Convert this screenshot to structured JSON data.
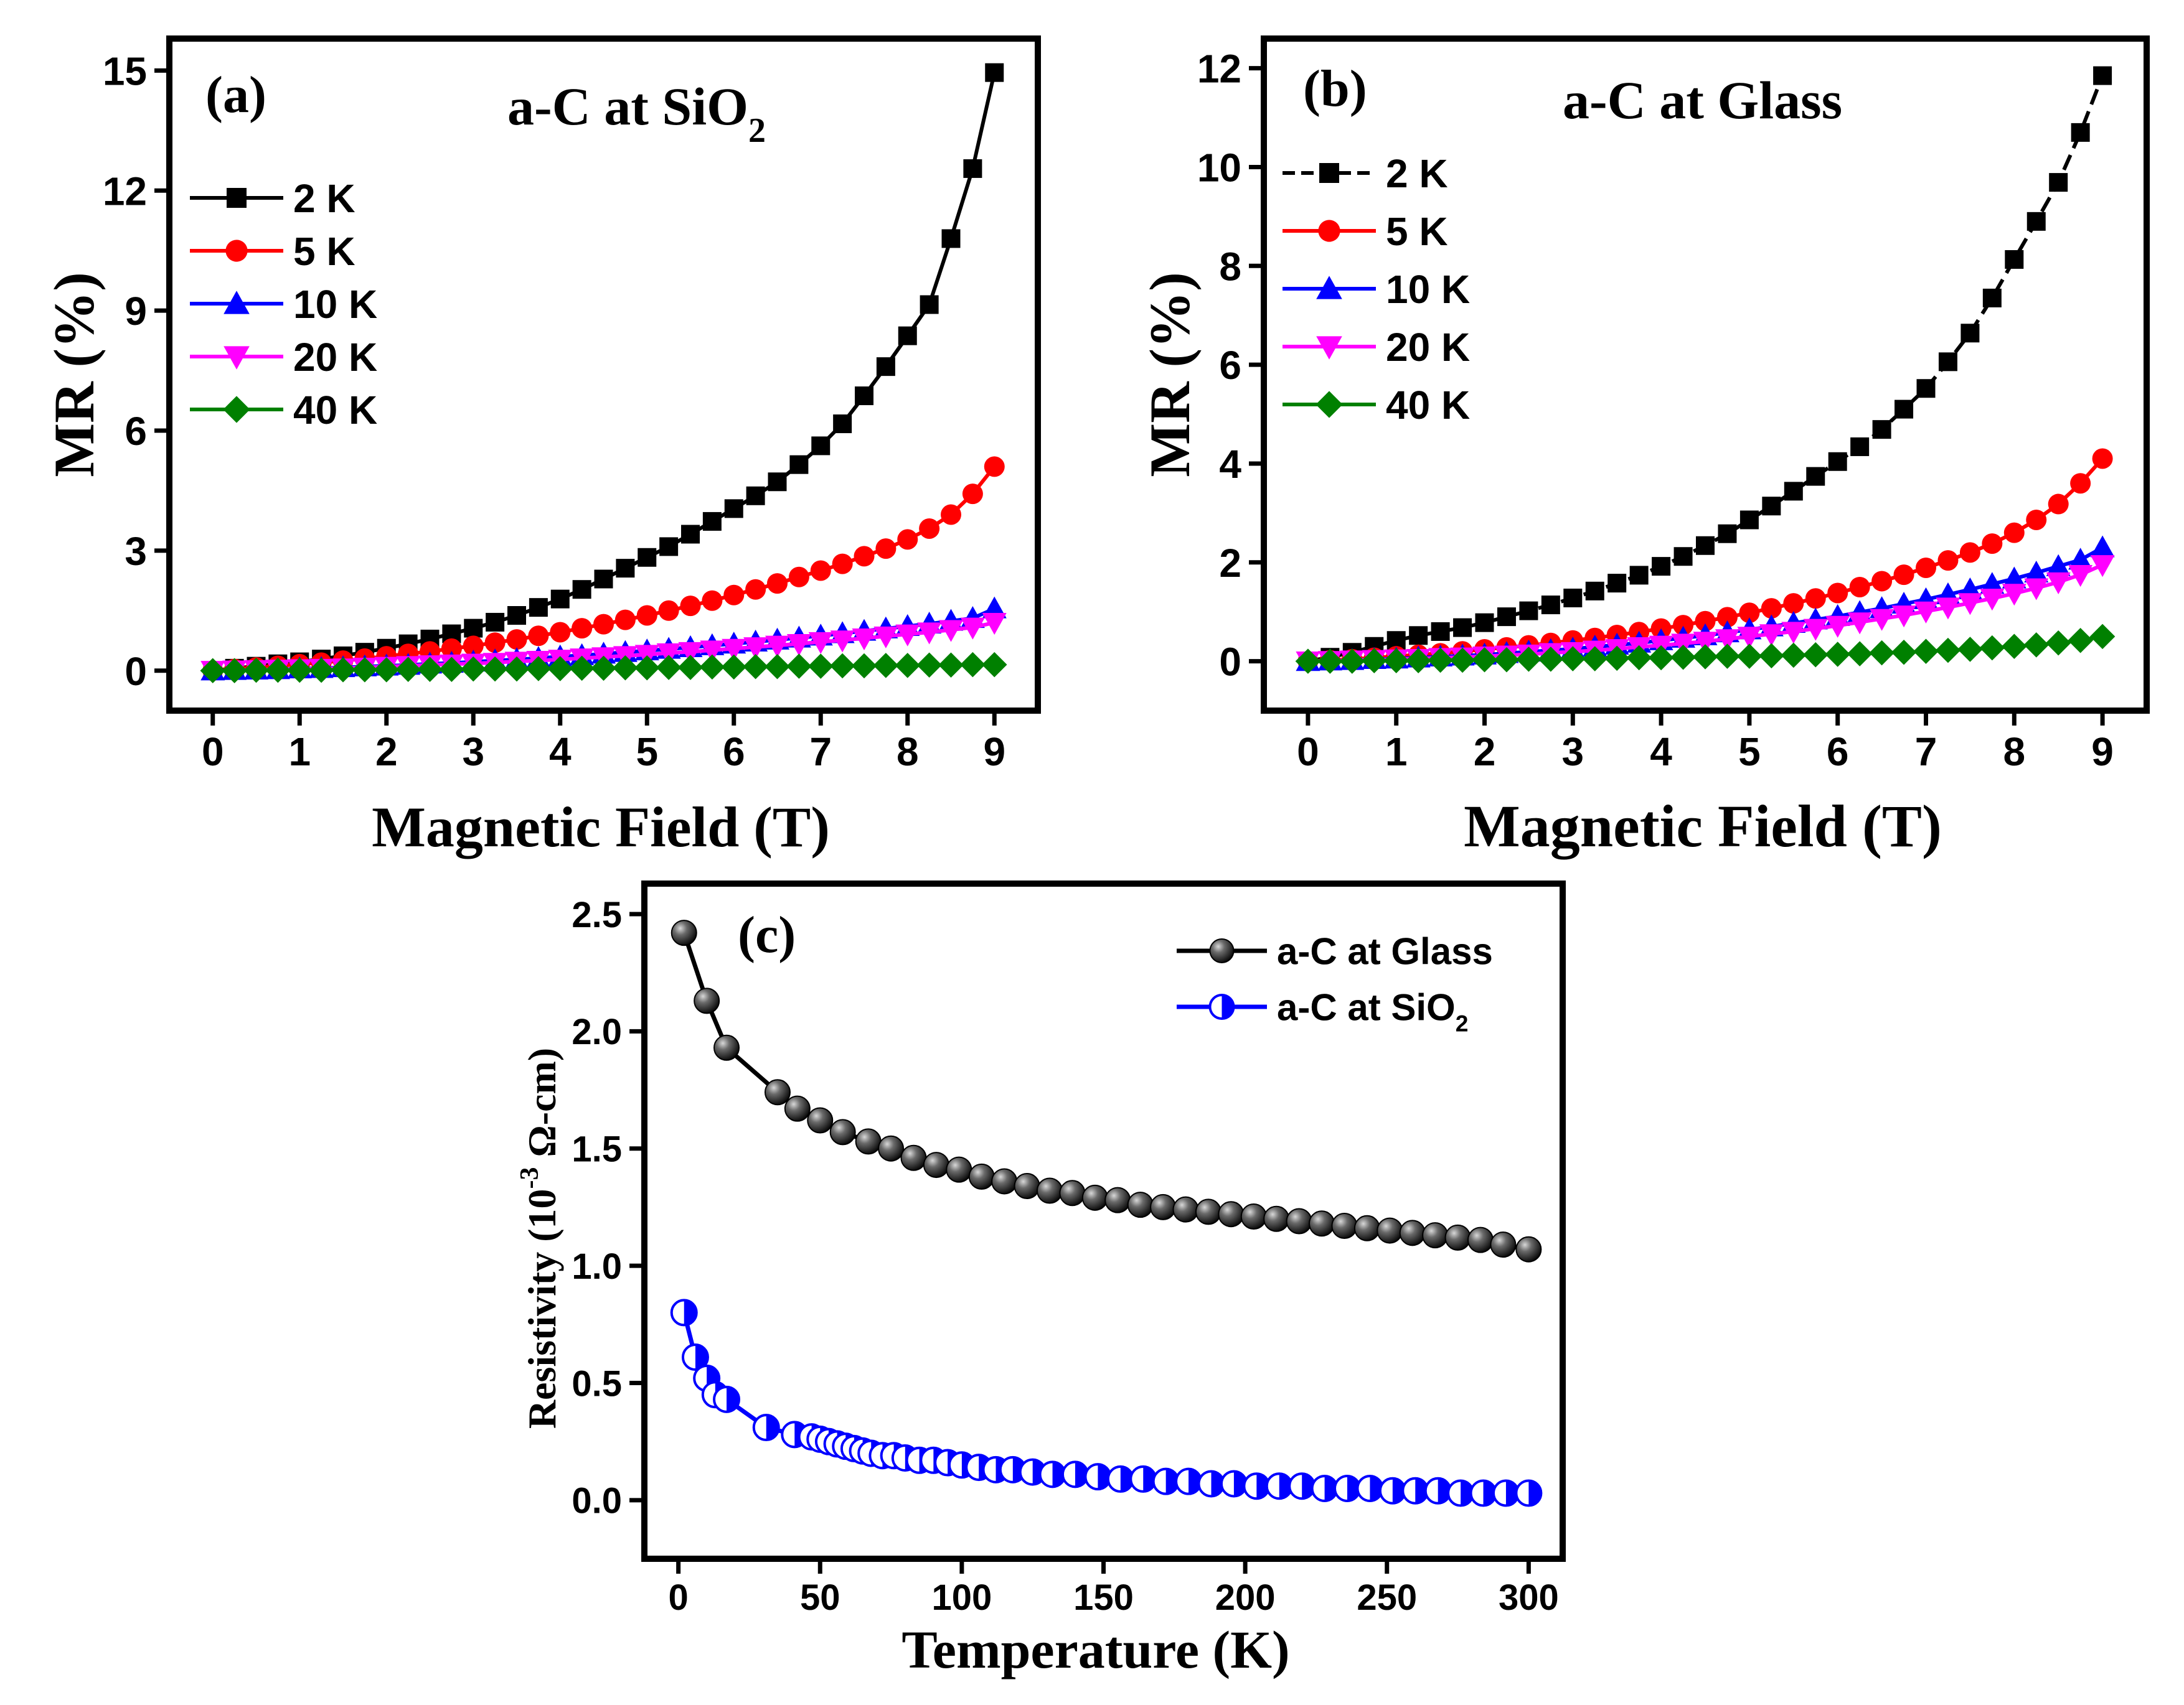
{
  "chart_data": [
    {
      "type": "line",
      "panel_label": "(a)",
      "title_main": "a-C at SiO",
      "title_sub": "2",
      "xlabel": "Magnetic Field (T)",
      "ylabel": "MR (%)",
      "xlim": [
        -0.5,
        9.5
      ],
      "ylim": [
        -1,
        15.8
      ],
      "xticks": [
        0,
        1,
        2,
        3,
        4,
        5,
        6,
        7,
        8,
        9
      ],
      "yticks": [
        0,
        3,
        6,
        9,
        12,
        15
      ],
      "legend_position": "top-left",
      "series": [
        {
          "name": "2 K",
          "marker": "square",
          "color": "#000000",
          "x": [
            0,
            0.25,
            0.5,
            0.75,
            1,
            1.25,
            1.5,
            1.75,
            2,
            2.25,
            2.5,
            2.75,
            3,
            3.25,
            3.5,
            3.75,
            4,
            4.25,
            4.5,
            4.75,
            5,
            5.25,
            5.5,
            5.75,
            6,
            6.25,
            6.5,
            6.75,
            7,
            7.25,
            7.5,
            7.75,
            8,
            8.25,
            8.5,
            8.75,
            9
          ],
          "y": [
            0,
            0.06,
            0.11,
            0.17,
            0.22,
            0.29,
            0.37,
            0.46,
            0.56,
            0.67,
            0.79,
            0.92,
            1.06,
            1.21,
            1.38,
            1.58,
            1.79,
            2.03,
            2.29,
            2.56,
            2.83,
            3.1,
            3.41,
            3.73,
            4.05,
            4.37,
            4.72,
            5.15,
            5.62,
            6.17,
            6.87,
            7.6,
            8.37,
            9.15,
            10.8,
            12.55,
            14.95
          ]
        },
        {
          "name": "5 K",
          "marker": "circle",
          "color": "#ff0000",
          "x": [
            0,
            0.25,
            0.5,
            0.75,
            1,
            1.25,
            1.5,
            1.75,
            2,
            2.25,
            2.5,
            2.75,
            3,
            3.25,
            3.5,
            3.75,
            4,
            4.25,
            4.5,
            4.75,
            5,
            5.25,
            5.5,
            5.75,
            6,
            6.25,
            6.5,
            6.75,
            7,
            7.25,
            7.5,
            7.75,
            8,
            8.25,
            8.5,
            8.75,
            9
          ],
          "y": [
            0,
            0.04,
            0.08,
            0.12,
            0.16,
            0.2,
            0.25,
            0.3,
            0.36,
            0.42,
            0.48,
            0.55,
            0.62,
            0.7,
            0.78,
            0.87,
            0.96,
            1.06,
            1.16,
            1.27,
            1.38,
            1.5,
            1.62,
            1.75,
            1.89,
            2.03,
            2.18,
            2.34,
            2.5,
            2.67,
            2.86,
            3.05,
            3.28,
            3.55,
            3.9,
            4.42,
            5.1
          ]
        },
        {
          "name": "10 K",
          "marker": "triangle-up",
          "color": "#0000ff",
          "x": [
            0,
            0.25,
            0.5,
            0.75,
            1,
            1.25,
            1.5,
            1.75,
            2,
            2.25,
            2.5,
            2.75,
            3,
            3.25,
            3.5,
            3.75,
            4,
            4.25,
            4.5,
            4.75,
            5,
            5.25,
            5.5,
            5.75,
            6,
            6.25,
            6.5,
            6.75,
            7,
            7.25,
            7.5,
            7.75,
            8,
            8.25,
            8.5,
            8.75,
            9
          ],
          "y": [
            0,
            0.01,
            0.02,
            0.03,
            0.05,
            0.06,
            0.08,
            0.1,
            0.12,
            0.14,
            0.17,
            0.19,
            0.22,
            0.25,
            0.28,
            0.31,
            0.35,
            0.38,
            0.42,
            0.46,
            0.5,
            0.54,
            0.58,
            0.63,
            0.67,
            0.72,
            0.77,
            0.82,
            0.87,
            0.93,
            0.99,
            1.05,
            1.11,
            1.17,
            1.24,
            1.31,
            1.55
          ]
        },
        {
          "name": "20 K",
          "marker": "triangle-down",
          "color": "#ff00ff",
          "x": [
            0,
            0.25,
            0.5,
            0.75,
            1,
            1.25,
            1.5,
            1.75,
            2,
            2.25,
            2.5,
            2.75,
            3,
            3.25,
            3.5,
            3.75,
            4,
            4.25,
            4.5,
            4.75,
            5,
            5.25,
            5.5,
            5.75,
            6,
            6.25,
            6.5,
            6.75,
            7,
            7.25,
            7.5,
            7.75,
            8,
            8.25,
            8.5,
            8.75,
            9
          ],
          "y": [
            0,
            0.01,
            0.02,
            0.03,
            0.04,
            0.05,
            0.06,
            0.08,
            0.1,
            0.12,
            0.14,
            0.16,
            0.18,
            0.2,
            0.23,
            0.25,
            0.28,
            0.31,
            0.34,
            0.37,
            0.4,
            0.44,
            0.47,
            0.51,
            0.55,
            0.59,
            0.63,
            0.67,
            0.72,
            0.76,
            0.81,
            0.86,
            0.91,
            0.96,
            1.02,
            1.08,
            1.2
          ]
        },
        {
          "name": "40 K",
          "marker": "diamond",
          "color": "#008000",
          "x": [
            0,
            0.25,
            0.5,
            0.75,
            1,
            1.25,
            1.5,
            1.75,
            2,
            2.25,
            2.5,
            2.75,
            3,
            3.25,
            3.5,
            3.75,
            4,
            4.25,
            4.5,
            4.75,
            5,
            5.25,
            5.5,
            5.75,
            6,
            6.25,
            6.5,
            6.75,
            7,
            7.25,
            7.5,
            7.75,
            8,
            8.25,
            8.5,
            8.75,
            9
          ],
          "y": [
            0,
            0,
            0.01,
            0.01,
            0.01,
            0.01,
            0.02,
            0.02,
            0.02,
            0.03,
            0.03,
            0.03,
            0.04,
            0.04,
            0.04,
            0.05,
            0.05,
            0.06,
            0.06,
            0.07,
            0.07,
            0.08,
            0.08,
            0.09,
            0.09,
            0.1,
            0.1,
            0.11,
            0.11,
            0.12,
            0.12,
            0.13,
            0.13,
            0.14,
            0.14,
            0.15,
            0.15
          ]
        }
      ]
    },
    {
      "type": "line",
      "panel_label": "(b)",
      "title_main": "a-C at Glass",
      "title_sub": "",
      "xlabel": "Magnetic Field (T)",
      "ylabel": "MR (%)",
      "xlim": [
        -0.5,
        9.5
      ],
      "ylim": [
        -1,
        12.6
      ],
      "xticks": [
        0,
        1,
        2,
        3,
        4,
        5,
        6,
        7,
        8,
        9
      ],
      "yticks": [
        0,
        2,
        4,
        6,
        8,
        10,
        12
      ],
      "legend_position": "top-left",
      "series": [
        {
          "name": "2 K",
          "marker": "square",
          "color": "#000000",
          "dashed": true,
          "x": [
            0,
            0.25,
            0.5,
            0.75,
            1,
            1.25,
            1.5,
            1.75,
            2,
            2.25,
            2.5,
            2.75,
            3,
            3.25,
            3.5,
            3.75,
            4,
            4.25,
            4.5,
            4.75,
            5,
            5.25,
            5.5,
            5.75,
            6,
            6.25,
            6.5,
            6.75,
            7,
            7.25,
            7.5,
            7.75,
            8,
            8.25,
            8.5,
            8.75,
            9
          ],
          "y": [
            0,
            0.08,
            0.18,
            0.3,
            0.42,
            0.52,
            0.6,
            0.68,
            0.78,
            0.9,
            1.02,
            1.14,
            1.28,
            1.42,
            1.58,
            1.74,
            1.92,
            2.12,
            2.34,
            2.58,
            2.86,
            3.14,
            3.44,
            3.74,
            4.04,
            4.34,
            4.69,
            5.1,
            5.52,
            6.06,
            6.64,
            7.35,
            8.13,
            8.9,
            9.69,
            10.7,
            11.85
          ]
        },
        {
          "name": "5 K",
          "marker": "circle",
          "color": "#ff0000",
          "x": [
            0,
            0.25,
            0.5,
            0.75,
            1,
            1.25,
            1.5,
            1.75,
            2,
            2.25,
            2.5,
            2.75,
            3,
            3.25,
            3.5,
            3.75,
            4,
            4.25,
            4.5,
            4.75,
            5,
            5.25,
            5.5,
            5.75,
            6,
            6.25,
            6.5,
            6.75,
            7,
            7.25,
            7.5,
            7.75,
            8,
            8.25,
            8.5,
            8.75,
            9
          ],
          "y": [
            0,
            0.02,
            0.04,
            0.07,
            0.1,
            0.13,
            0.16,
            0.2,
            0.24,
            0.28,
            0.32,
            0.37,
            0.42,
            0.47,
            0.53,
            0.59,
            0.66,
            0.73,
            0.81,
            0.89,
            0.98,
            1.07,
            1.17,
            1.27,
            1.38,
            1.5,
            1.62,
            1.75,
            1.89,
            2.04,
            2.2,
            2.38,
            2.6,
            2.86,
            3.18,
            3.6,
            4.1
          ]
        },
        {
          "name": "10 K",
          "marker": "triangle-up",
          "color": "#0000ff",
          "x": [
            0,
            0.25,
            0.5,
            0.75,
            1,
            1.25,
            1.5,
            1.75,
            2,
            2.25,
            2.5,
            2.75,
            3,
            3.25,
            3.5,
            3.75,
            4,
            4.25,
            4.5,
            4.75,
            5,
            5.25,
            5.5,
            5.75,
            6,
            6.25,
            6.5,
            6.75,
            7,
            7.25,
            7.5,
            7.75,
            8,
            8.25,
            8.5,
            8.75,
            9
          ],
          "y": [
            0,
            0.01,
            0.02,
            0.04,
            0.05,
            0.07,
            0.09,
            0.11,
            0.13,
            0.16,
            0.19,
            0.22,
            0.25,
            0.29,
            0.33,
            0.37,
            0.42,
            0.47,
            0.52,
            0.58,
            0.64,
            0.7,
            0.77,
            0.84,
            0.91,
            0.99,
            1.07,
            1.16,
            1.25,
            1.35,
            1.45,
            1.56,
            1.67,
            1.79,
            1.92,
            2.05,
            2.3
          ]
        },
        {
          "name": "20 K",
          "marker": "triangle-down",
          "color": "#ff00ff",
          "x": [
            0,
            0.25,
            0.5,
            0.75,
            1,
            1.25,
            1.5,
            1.75,
            2,
            2.25,
            2.5,
            2.75,
            3,
            3.25,
            3.5,
            3.75,
            4,
            4.25,
            4.5,
            4.75,
            5,
            5.25,
            5.5,
            5.75,
            6,
            6.25,
            6.5,
            6.75,
            7,
            7.25,
            7.5,
            7.75,
            8,
            8.25,
            8.5,
            8.75,
            9
          ],
          "y": [
            0,
            0.01,
            0.02,
            0.03,
            0.04,
            0.05,
            0.07,
            0.08,
            0.1,
            0.12,
            0.14,
            0.17,
            0.19,
            0.22,
            0.25,
            0.29,
            0.32,
            0.36,
            0.4,
            0.45,
            0.5,
            0.55,
            0.6,
            0.66,
            0.72,
            0.79,
            0.86,
            0.93,
            1.01,
            1.09,
            1.18,
            1.27,
            1.37,
            1.48,
            1.6,
            1.75,
            1.95
          ]
        },
        {
          "name": "40 K",
          "marker": "diamond",
          "color": "#008000",
          "x": [
            0,
            0.25,
            0.5,
            0.75,
            1,
            1.25,
            1.5,
            1.75,
            2,
            2.25,
            2.5,
            2.75,
            3,
            3.25,
            3.5,
            3.75,
            4,
            4.25,
            4.5,
            4.75,
            5,
            5.25,
            5.5,
            5.75,
            6,
            6.25,
            6.5,
            6.75,
            7,
            7.25,
            7.5,
            7.75,
            8,
            8.25,
            8.5,
            8.75,
            9
          ],
          "y": [
            0,
            0,
            0,
            0.01,
            0.01,
            0.01,
            0.02,
            0.02,
            0.03,
            0.03,
            0.04,
            0.04,
            0.05,
            0.05,
            0.06,
            0.07,
            0.07,
            0.08,
            0.09,
            0.1,
            0.1,
            0.11,
            0.12,
            0.13,
            0.14,
            0.15,
            0.17,
            0.18,
            0.2,
            0.22,
            0.24,
            0.27,
            0.3,
            0.33,
            0.37,
            0.42,
            0.5
          ]
        }
      ]
    },
    {
      "type": "line",
      "panel_label": "(c)",
      "xlabel": "Temperature (K)",
      "ylabel_main": "Resistivity (10",
      "ylabel_sup": "-3",
      "ylabel_rest": " Ω-cm)",
      "xlim": [
        -12,
        312
      ],
      "ylim": [
        -0.25,
        2.63
      ],
      "xticks": [
        0,
        50,
        100,
        150,
        200,
        250,
        300
      ],
      "yticks": [
        0.0,
        0.5,
        1.0,
        1.5,
        2.0,
        2.5
      ],
      "ytick_labels": [
        "0.0",
        "0.5",
        "1.0",
        "1.5",
        "2.0",
        "2.5"
      ],
      "legend_position": "top-right",
      "series": [
        {
          "name": "a-C at Glass",
          "name_sub": "",
          "marker": "sphere",
          "color": "#000000",
          "x": [
            2,
            10,
            17,
            35,
            42,
            50,
            58,
            67,
            75,
            83,
            91,
            99,
            107,
            115,
            123,
            131,
            139,
            147,
            155,
            163,
            171,
            179,
            187,
            195,
            203,
            211,
            219,
            227,
            235,
            243,
            251,
            259,
            267,
            275,
            283,
            291,
            300
          ],
          "y": [
            2.42,
            2.13,
            1.93,
            1.74,
            1.67,
            1.62,
            1.57,
            1.53,
            1.5,
            1.46,
            1.43,
            1.41,
            1.38,
            1.36,
            1.34,
            1.32,
            1.31,
            1.29,
            1.28,
            1.26,
            1.25,
            1.24,
            1.23,
            1.22,
            1.21,
            1.2,
            1.19,
            1.18,
            1.17,
            1.16,
            1.15,
            1.14,
            1.13,
            1.12,
            1.11,
            1.09,
            1.07
          ]
        },
        {
          "name": "a-C at SiO",
          "name_sub": "2",
          "marker": "half-circle",
          "color": "#0000ff",
          "x": [
            2,
            6,
            10,
            13,
            17,
            31,
            41,
            47,
            50,
            53,
            56,
            59,
            62,
            65,
            68,
            72,
            76,
            80,
            85,
            90,
            95,
            100,
            106,
            112,
            118,
            125,
            132,
            140,
            148,
            156,
            164,
            172,
            180,
            188,
            196,
            204,
            212,
            220,
            228,
            236,
            244,
            252,
            260,
            268,
            276,
            284,
            292,
            300
          ],
          "y": [
            0.8,
            0.61,
            0.52,
            0.45,
            0.43,
            0.31,
            0.28,
            0.27,
            0.26,
            0.25,
            0.24,
            0.23,
            0.22,
            0.21,
            0.2,
            0.19,
            0.19,
            0.18,
            0.17,
            0.17,
            0.16,
            0.15,
            0.14,
            0.13,
            0.13,
            0.12,
            0.11,
            0.11,
            0.1,
            0.09,
            0.09,
            0.08,
            0.08,
            0.07,
            0.07,
            0.06,
            0.06,
            0.06,
            0.05,
            0.05,
            0.05,
            0.04,
            0.04,
            0.04,
            0.03,
            0.03,
            0.03,
            0.03
          ]
        }
      ]
    }
  ]
}
